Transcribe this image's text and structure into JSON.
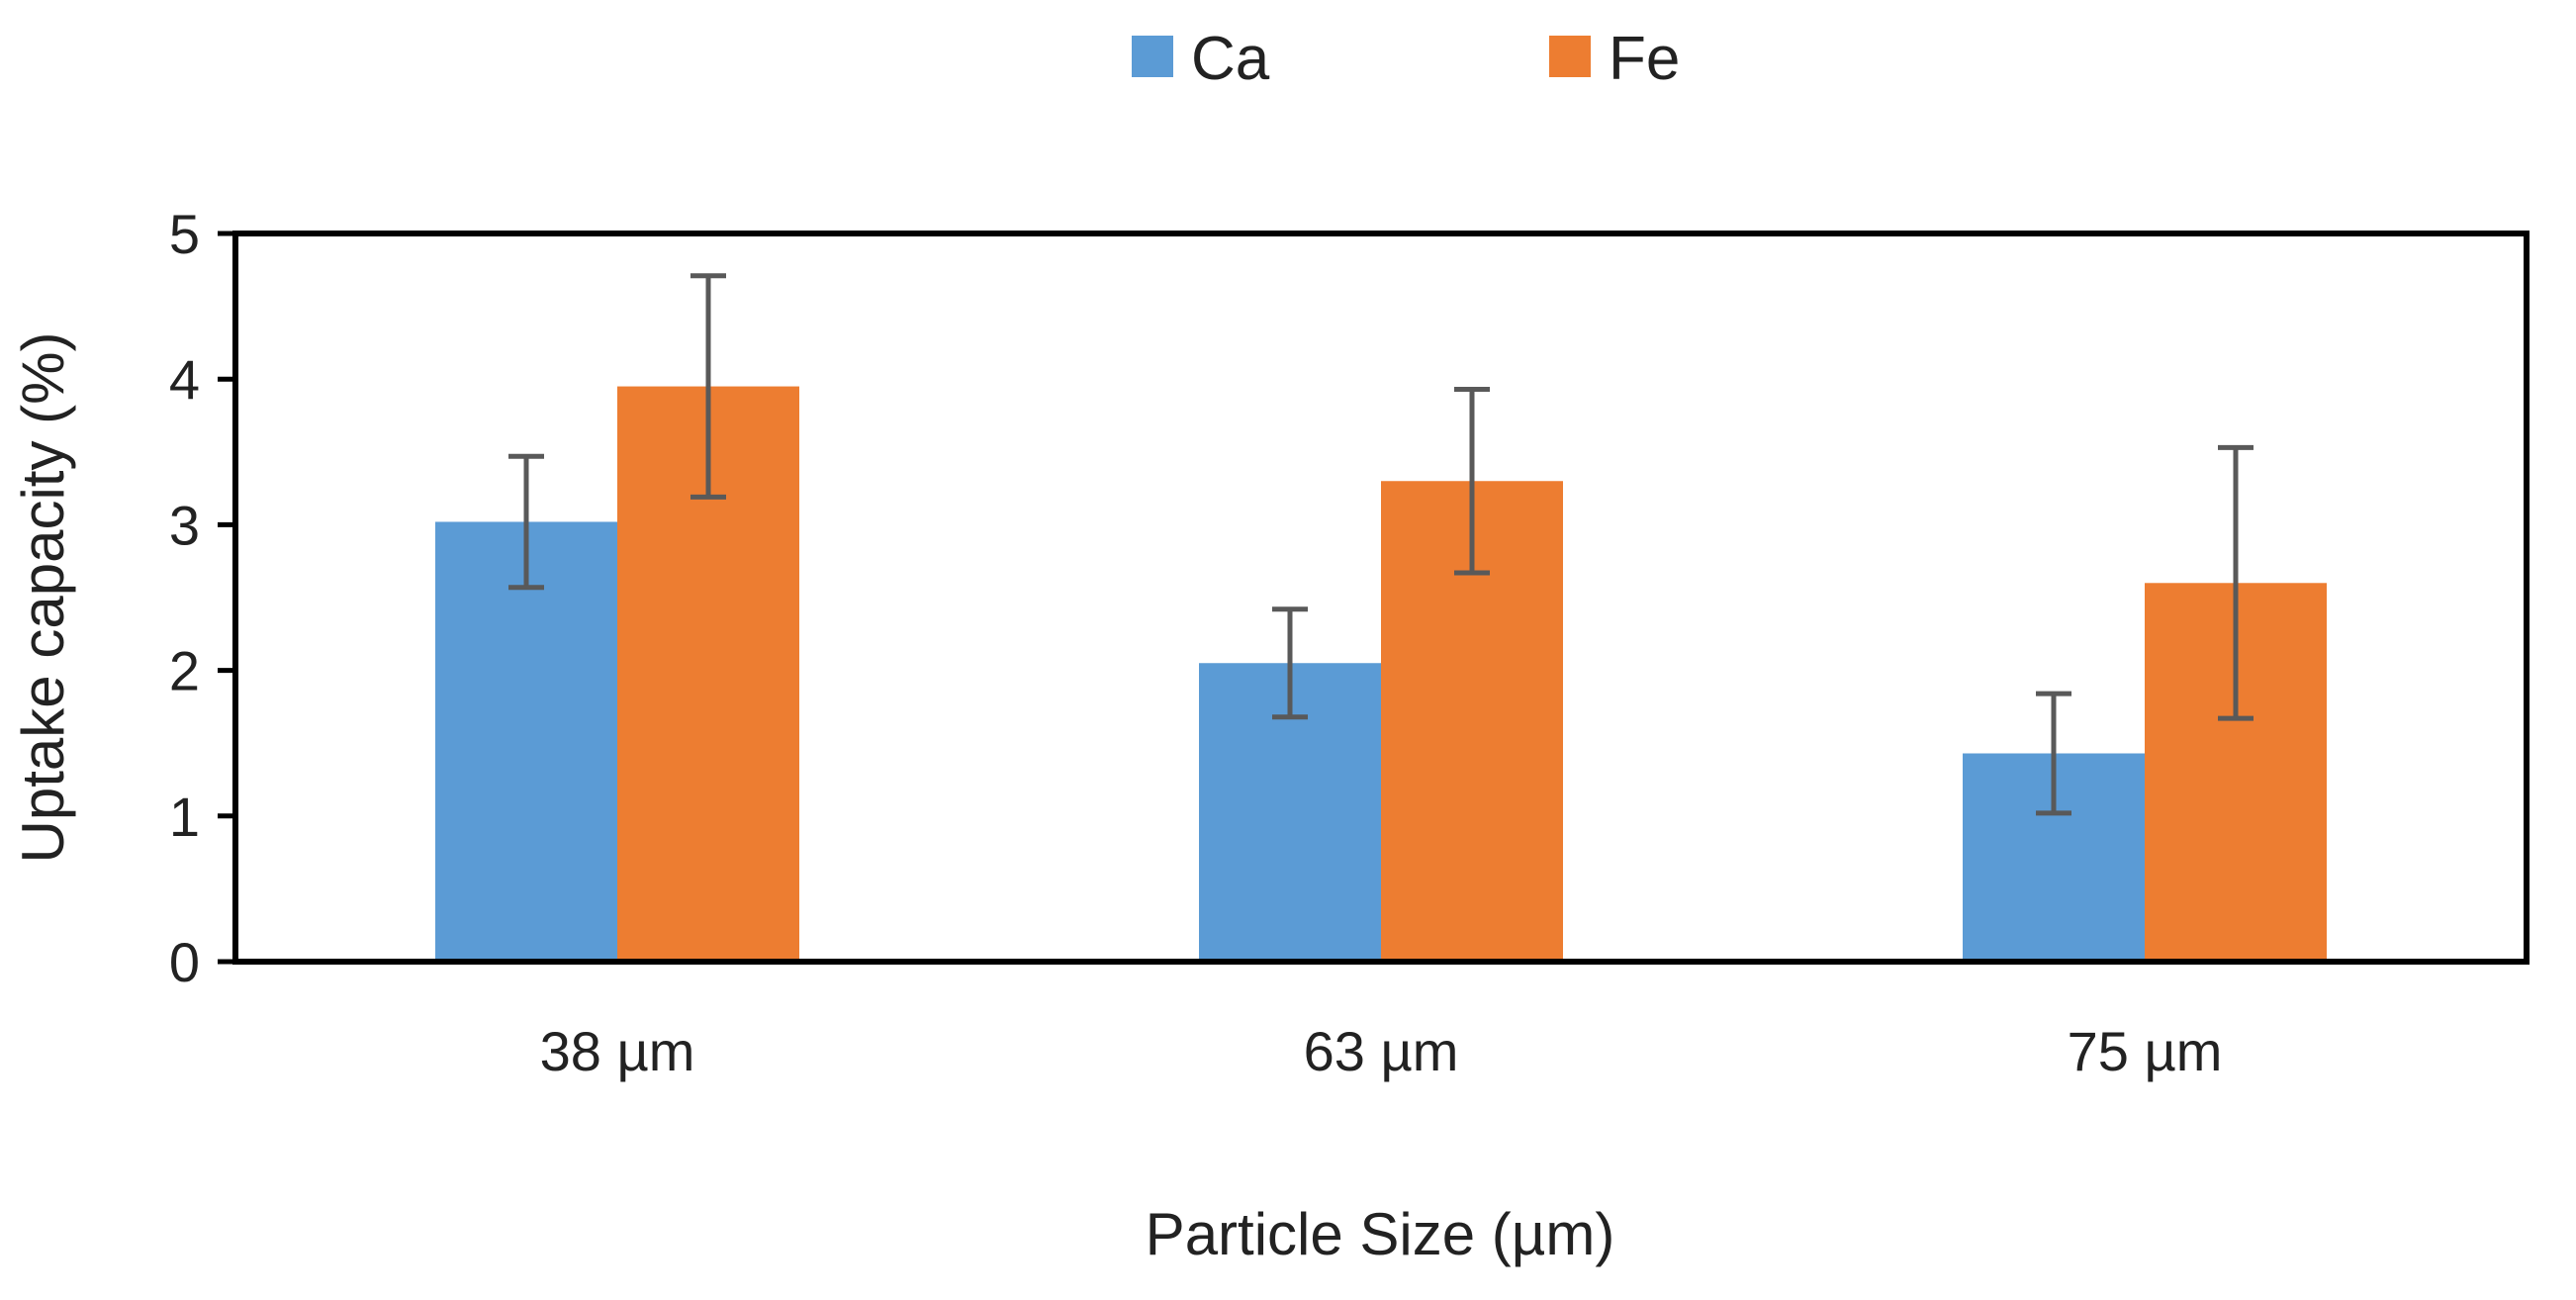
{
  "chart_data": {
    "type": "bar",
    "title": "",
    "xlabel": "Particle Size (µm)",
    "ylabel": "Uptake capacity (%)",
    "categories": [
      "38 µm",
      "63 µm",
      "75 µm"
    ],
    "ylim": [
      0,
      5
    ],
    "yticks": [
      "0",
      "1",
      "2",
      "3",
      "4",
      "5"
    ],
    "grid": false,
    "legend": "top-center",
    "series": [
      {
        "name": "Ca",
        "color": "#5b9bd5",
        "values": [
          3.02,
          2.05,
          1.43
        ],
        "error": [
          0.45,
          0.37,
          0.41
        ],
        "error_label": "±"
      },
      {
        "name": "Fe",
        "color": "#ed7d31",
        "values": [
          3.95,
          3.3,
          2.6
        ],
        "error": [
          0.76,
          0.63,
          0.93
        ],
        "error_label": "±"
      }
    ],
    "error_bar_color": "#595959",
    "axis_color": "#000000"
  }
}
